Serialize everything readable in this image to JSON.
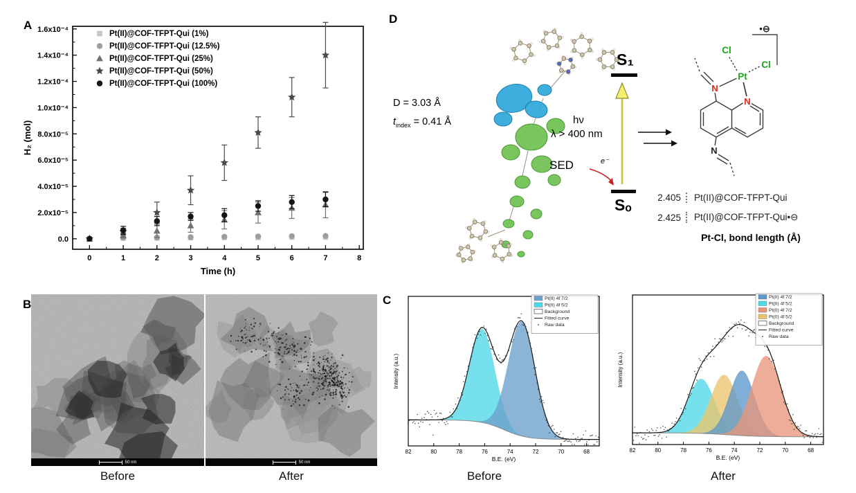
{
  "panel_a": {
    "label": "A"
  },
  "panel_b": {
    "label": "B",
    "images": [
      {
        "caption": "Before",
        "scale_bar": "50 nm"
      },
      {
        "caption": "After",
        "scale_bar": "50 nm"
      }
    ]
  },
  "panel_c": {
    "label": "C",
    "captions": [
      "Before",
      "After"
    ]
  },
  "panel_d": {
    "label": "D",
    "distance_text": "D = 3.03 Å",
    "tindex_italic": "t",
    "tindex_sub": "index",
    "tindex_rest": " = 0.41 Å",
    "energy": {
      "s1": "S₁",
      "s0": "Sₒ",
      "hv": "hν",
      "lambda": "λ > 400 nm",
      "sed": "SED",
      "electron": "e⁻"
    },
    "structure": {
      "pt": "Pt",
      "cl": "Cl",
      "n": "N",
      "radical": "•⊖"
    },
    "bond_lengths": {
      "rows": [
        {
          "value": "2.405",
          "label": "Pt(II)@COF-TFPT-Qui",
          "suffix": ""
        },
        {
          "value": "2.425",
          "label": "Pt(II)@COF-TFPT-Qui",
          "suffix": "•⊖"
        }
      ],
      "caption": "Pt-Cl, bond length (Å)"
    }
  },
  "chart_data": [
    {
      "id": "h2-evolution",
      "type": "scatter",
      "title": "",
      "xlabel": "Time (h)",
      "ylabel": "H₂ (mol)",
      "xlim": [
        -0.5,
        8.12
      ],
      "ylim": [
        -8e-06,
        0.000162
      ],
      "x": [
        0,
        1,
        2,
        3,
        4,
        5,
        6,
        7
      ],
      "x_ticks": [
        0,
        1,
        2,
        3,
        4,
        5,
        6,
        7,
        8
      ],
      "y_ticks": [
        {
          "v": 0,
          "label": "0.0"
        },
        {
          "v": 2e-05,
          "label": "2.0x10⁻⁵"
        },
        {
          "v": 4e-05,
          "label": "4.0x10⁻⁵"
        },
        {
          "v": 6e-05,
          "label": "6.0x10⁻⁵"
        },
        {
          "v": 8e-05,
          "label": "8.0x10⁻⁵"
        },
        {
          "v": 0.0001,
          "label": "1.0x10⁻⁴"
        },
        {
          "v": 0.00012,
          "label": "1.2x10⁻⁴"
        },
        {
          "v": 0.00014,
          "label": "1.4x10⁻⁴"
        },
        {
          "v": 0.00016,
          "label": "1.6x10⁻⁴"
        }
      ],
      "series": [
        {
          "name": "Pt(II)@COF-TFPT-Qui (1%)",
          "marker": "square",
          "color": "#c7c7c7",
          "values": [
            0,
            5e-07,
            5e-07,
            8e-07,
            1e-06,
            1e-06,
            1.2e-06,
            1.2e-06
          ],
          "errors": [
            0,
            3e-07,
            3e-07,
            3e-07,
            3e-07,
            3e-07,
            3e-07,
            3e-07
          ]
        },
        {
          "name": "Pt(II)@COF-TFPT-Qui (12.5%)",
          "marker": "circle",
          "color": "#9d9d9d",
          "values": [
            0,
            8e-07,
            1e-06,
            1.2e-06,
            1.5e-06,
            1.8e-06,
            2e-06,
            2.2e-06
          ],
          "errors": [
            0,
            8e-07,
            8e-07,
            8e-07,
            1e-06,
            1e-06,
            1e-06,
            1e-06
          ]
        },
        {
          "name": "Pt(II)@COF-TFPT-Qui (25%)",
          "marker": "triangle",
          "color": "#707070",
          "values": [
            0,
            2.5e-06,
            6e-06,
            1e-05,
            1.45e-05,
            2e-05,
            2.35e-05,
            2.6e-05
          ],
          "errors": [
            0,
            2e-06,
            5e-06,
            5e-06,
            7e-06,
            8e-06,
            8e-06,
            1e-05
          ]
        },
        {
          "name": "Pt(II)@COF-TFPT-Qui (50%)",
          "marker": "star",
          "color": "#4a4a4a",
          "values": [
            0,
            5.5e-06,
            2e-05,
            3.7e-05,
            5.8e-05,
            8.1e-05,
            0.000108,
            0.00014
          ],
          "errors": [
            0,
            2.5e-06,
            8e-06,
            1.1e-05,
            1.35e-05,
            1.2e-05,
            1.5e-05,
            2.5e-05
          ]
        },
        {
          "name": "Pt(II)@COF-TFPT-Qui (100%)",
          "marker": "circle",
          "color": "#141414",
          "values": [
            0,
            6.5e-06,
            1.35e-05,
            1.7e-05,
            1.8e-05,
            2.5e-05,
            2.8e-05,
            3e-05
          ],
          "errors": [
            0,
            3e-06,
            3.5e-06,
            3e-06,
            5e-06,
            4e-06,
            5e-06,
            5.5e-06
          ]
        }
      ]
    },
    {
      "id": "xps-before",
      "type": "area",
      "caption": "Before",
      "xlabel": "B.E. (eV)",
      "ylabel": "Intensity (a.u.)",
      "xlim": [
        82,
        67
      ],
      "x_ticks": [
        82,
        80,
        78,
        76,
        74,
        72,
        70,
        68
      ],
      "peaks": [
        {
          "name": "Pt(II) 4f 7/2",
          "color": "#6b9fcc",
          "center": 73.1,
          "sigma": 1.05,
          "amplitude": 0.88
        },
        {
          "name": "Pt(II) 4f 5/2",
          "color": "#4fd9e8",
          "center": 76.2,
          "sigma": 1.0,
          "amplitude": 0.72
        }
      ],
      "draw_order": [
        1,
        0
      ],
      "background": {
        "label": "Background",
        "left": 0.2,
        "right": 0.05,
        "mid": 74.5,
        "width": 0.9
      },
      "fitted_label": "Fitted curve",
      "raw_label": "Raw data",
      "seed": 7
    },
    {
      "id": "xps-after",
      "type": "area",
      "caption": "After",
      "xlabel": "B.E. (eV)",
      "ylabel": "Intensity (a.u.)",
      "xlim": [
        82,
        67
      ],
      "x_ticks": [
        82,
        80,
        78,
        76,
        74,
        72,
        70,
        68
      ],
      "peaks": [
        {
          "name": "Pt(II) 4f 7/2",
          "color": "#5e97cc",
          "center": 73.4,
          "sigma": 1.0,
          "amplitude": 0.5
        },
        {
          "name": "Pt(II) 4f 5/2",
          "color": "#4fd9e8",
          "center": 76.6,
          "sigma": 1.05,
          "amplitude": 0.42
        },
        {
          "name": "Pt(0) 4f 7/2",
          "color": "#e8967b",
          "center": 71.5,
          "sigma": 1.15,
          "amplitude": 0.62
        },
        {
          "name": "Pt(0) 4f 5/2",
          "color": "#ecc56b",
          "center": 74.8,
          "sigma": 1.05,
          "amplitude": 0.46
        }
      ],
      "draw_order": [
        1,
        3,
        0,
        2
      ],
      "background": {
        "label": "Background",
        "left": 0.09,
        "right": 0.06,
        "mid": 74.5,
        "width": 1.2
      },
      "fitted_label": "Fitted curve",
      "raw_label": "Raw data",
      "seed": 13
    }
  ]
}
